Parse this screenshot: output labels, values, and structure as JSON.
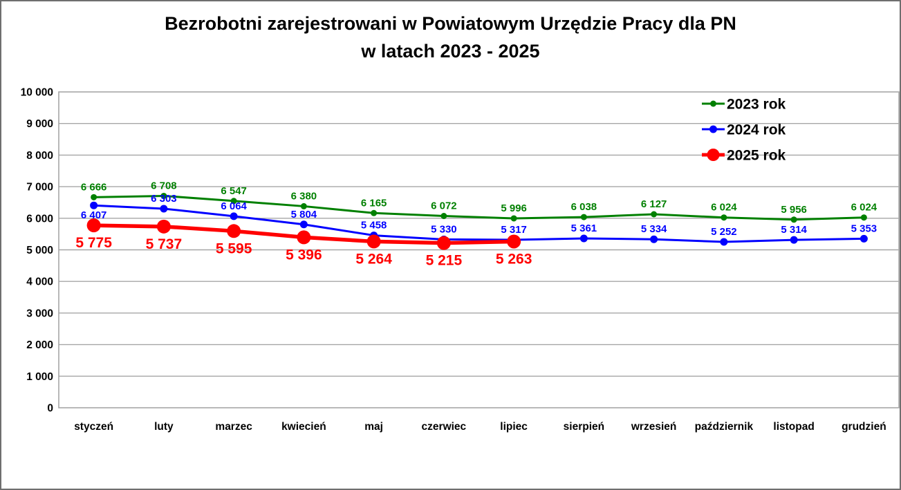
{
  "title": {
    "line1": "Bezrobotni zarejestrowani w Powiatowym Urzędzie Pracy dla PN",
    "line2": "w latach 2023 - 2025"
  },
  "chart_data": {
    "type": "line",
    "categories": [
      "styczeń",
      "luty",
      "marzec",
      "kwiecień",
      "maj",
      "czerwiec",
      "lipiec",
      "sierpień",
      "wrzesień",
      "październik",
      "listopad",
      "grudzień"
    ],
    "series": [
      {
        "name": "2023 rok",
        "color": "#008000",
        "values": [
          6666,
          6708,
          6547,
          6380,
          6165,
          6072,
          5996,
          6038,
          6127,
          6024,
          5956,
          6024
        ],
        "line_width": 3,
        "marker_radius": 4.5,
        "label_font_size": 15,
        "label_position": "above",
        "label_overrides": {}
      },
      {
        "name": "2024 rok",
        "color": "#0000ff",
        "values": [
          6407,
          6303,
          6064,
          5804,
          5458,
          5330,
          5317,
          5361,
          5334,
          5252,
          5314,
          5353
        ],
        "line_width": 3,
        "marker_radius": 5.5,
        "label_font_size": 15,
        "label_position": "above",
        "label_overrides": {
          "0": "below"
        }
      },
      {
        "name": "2025 rok",
        "color": "#ff0000",
        "values": [
          5775,
          5737,
          5595,
          5396,
          5264,
          5215,
          5263
        ],
        "line_width": 5.5,
        "marker_radius": 10,
        "label_font_size": 21,
        "label_position": "below",
        "label_overrides": {}
      }
    ],
    "ylim": [
      0,
      10000
    ],
    "ytick_step": 1000,
    "ytick_labels": [
      "0",
      "1 000",
      "2 000",
      "3 000",
      "4 000",
      "5 000",
      "6 000",
      "7 000",
      "8 000",
      "9 000",
      "10 000"
    ],
    "grid": true,
    "gridline_color": "#a6a6a6",
    "axis_text_color": "#000000",
    "legend_position": "top-right",
    "legend_entries": [
      "2023 rok",
      "2024 rok",
      "2025 rok"
    ],
    "number_format": "space-thousands"
  }
}
